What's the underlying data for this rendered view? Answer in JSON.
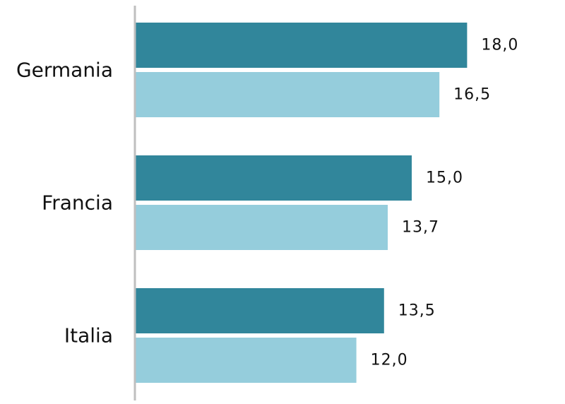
{
  "chart_data": {
    "type": "bar",
    "orientation": "horizontal",
    "categories": [
      "Germania",
      "Francia",
      "Italia"
    ],
    "series": [
      {
        "values": [
          18.0,
          15.0,
          13.5
        ],
        "labels": [
          "18,0",
          "15,0",
          "13,5"
        ],
        "color": "#31869b"
      },
      {
        "values": [
          16.5,
          13.7,
          12.0
        ],
        "labels": [
          "16,5",
          "13,7",
          "12,0"
        ],
        "color": "#95cddc"
      }
    ],
    "xlim": [
      0,
      21.2
    ],
    "grid": false,
    "axis_color": "#bfbfbf"
  }
}
